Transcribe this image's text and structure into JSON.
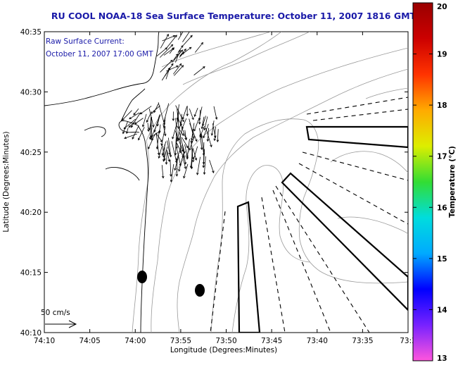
{
  "title": "RU COOL  NOAA-18  Sea Surface Temperature:  October 11, 2007 1816 GMT",
  "annotation": {
    "line1": "Raw Surface Current:",
    "line2": "October 11, 2007 17:00 GMT"
  },
  "axes": {
    "x_label": "Longitude (Degrees:Minutes)",
    "y_label": "Latitude (Degrees:Minutes)",
    "x_ticks": [
      "74:10",
      "74:05",
      "74:00",
      "73:55",
      "73:50",
      "73:45",
      "73:40",
      "73:35",
      "73:3"
    ],
    "y_ticks": [
      "40:35",
      "40:30",
      "40:25",
      "40:20",
      "40:15",
      "40:10"
    ]
  },
  "scale_bar": {
    "label": "50 cm/s"
  },
  "colorbar": {
    "label": "Temperature (°C)",
    "min": 13,
    "max": 20,
    "ticks": [
      "20",
      "19",
      "18",
      "17",
      "16",
      "15",
      "14",
      "13"
    ],
    "stops": [
      "#ff55dd",
      "#7722ff",
      "#0000ff",
      "#00aaff",
      "#00dddd",
      "#33dd33",
      "#ddee00",
      "#ffaa00",
      "#ff3300",
      "#cc0000",
      "#990000"
    ]
  },
  "markers": [
    {
      "name": "buoy-marker-1"
    },
    {
      "name": "buoy-marker-2"
    }
  ]
}
